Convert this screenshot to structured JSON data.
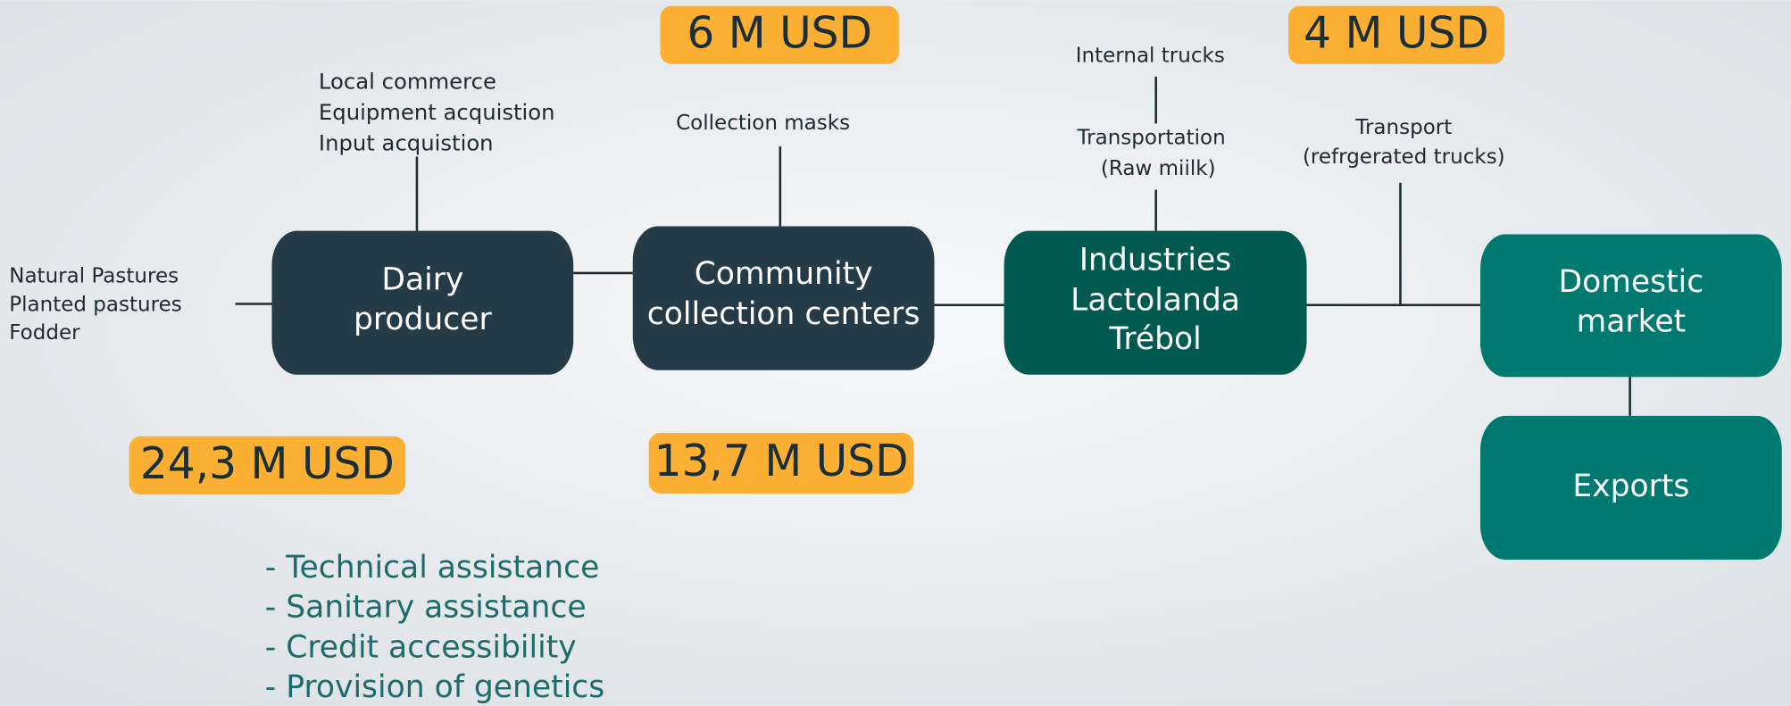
{
  "nodes": [
    {
      "lines": [
        "Dairy",
        "producer"
      ]
    },
    {
      "lines": [
        "Community",
        "collection centers"
      ]
    },
    {
      "lines": [
        "Industries",
        "Lactolanda",
        "Trébol"
      ]
    },
    {
      "lines": [
        "Domestic",
        "market"
      ]
    },
    {
      "lines": [
        "Exports"
      ]
    }
  ],
  "inputs": [
    "Natural Pastures",
    "Planted pastures",
    "Fodder"
  ],
  "annotations": [
    {
      "lines": [
        "Local commerce",
        "Equipment acquistion",
        "Input acquistion"
      ]
    },
    {
      "lines": [
        "Collection masks"
      ]
    },
    {
      "lines": [
        "Internal trucks"
      ]
    },
    {
      "lines": [
        "Transportation",
        "(Raw miilk)"
      ]
    },
    {
      "lines": [
        "Transport",
        "(refrgerated trucks)"
      ]
    }
  ],
  "badges": [
    "6 M USD",
    "4 M USD",
    "24,3 M USD",
    "13,7 M USD"
  ],
  "services": [
    "- Technical assistance",
    "- Sanitary assistance",
    "- Credit accessibility",
    "- Provision of genetics"
  ]
}
